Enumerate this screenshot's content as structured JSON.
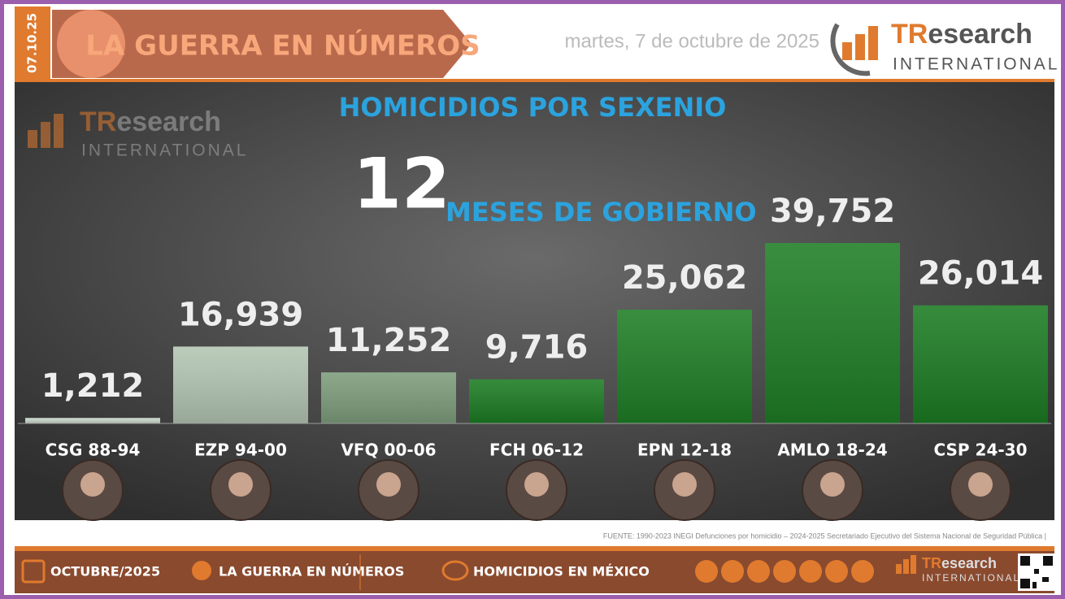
{
  "header": {
    "date_tab": "07.10.25",
    "banner": "LA GUERRA EN NÚMEROS",
    "date": "martes, 7 de octubre de 2025"
  },
  "logo": {
    "accent": "TR",
    "rest": "esearch",
    "sub": "INTERNATIONAL"
  },
  "chart_data": {
    "type": "bar",
    "title": "HOMICIDIOS POR SEXENIO",
    "subtitle_number": "12",
    "subtitle": "MESES DE GOBIERNO",
    "categories": [
      "CSG 88-94",
      "EZP 94-00",
      "VFQ 00-06",
      "FCH 06-12",
      "EPN 12-18",
      "AMLO 18-24",
      "CSP 24-30"
    ],
    "values": [
      1212,
      16939,
      11252,
      9716,
      25062,
      39752,
      26014
    ],
    "value_labels": [
      "1,212",
      "16,939",
      "11,252",
      "9,716",
      "25,062",
      "39,752",
      "26,014"
    ],
    "colors": [
      "#c9d6c9",
      "#b3c5b2",
      "#7d9c7b",
      "#1b7b22",
      "#1e7e25",
      "#1e7e25",
      "#1b7b22"
    ]
  },
  "source": "FUENTE: 1990-2023 INEGI Defunciones por homicidio – 2024-2025 Secretariado Ejecutivo del Sistema Nacional de Seguridad Pública |",
  "footer": {
    "month": "OCTUBRE/2025",
    "section": "LA GUERRA EN NÚMEROS",
    "topic": "HOMICIDIOS EN MÉXICO"
  }
}
